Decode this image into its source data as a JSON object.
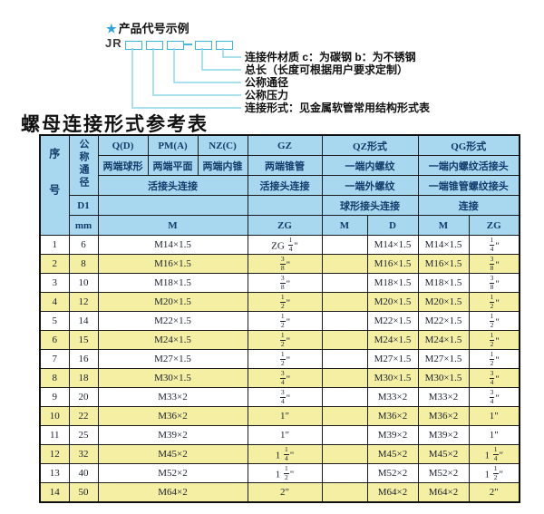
{
  "diagram": {
    "star": "★",
    "title": "产品代号示例",
    "prefix": "JR",
    "labels": [
      "连接件材质  c：为碳钢  b：为不锈钢",
      "总长（长度可根据用户要求定制）",
      "公称通径",
      "公称压力",
      "连接形式：见金属软管常用结构形式表"
    ]
  },
  "table": {
    "title": "螺母连接形式参考表",
    "header": {
      "seq": "序号",
      "dn": "公称通径",
      "d1": "D1",
      "mm": "mm",
      "col_q": "Q(D)",
      "col_pm": "PM(A)",
      "col_nz": "NZ(C)",
      "col_gz": "GZ",
      "col_qz": "QZ形式",
      "col_qg": "QG形式",
      "sub_q": "两端球形",
      "sub_pm": "两端平面",
      "sub_nz": "两端内锥",
      "sub_gz": "两端锥管",
      "sub_qz": "一端内螺纹",
      "sub_qg": "一端内螺纹活接头",
      "row3_qpmnz": "活接头连接",
      "row3_gz": "活接头连接",
      "row3_qz": "一端外螺纹",
      "row3_qg": "一端锥管螺纹接头",
      "row4_qz": "球形接头连接",
      "row4_qg": "连接",
      "m_label": "M",
      "zg_label": "ZG",
      "qz_m": "M",
      "qz_d": "D",
      "qg_m": "M",
      "qg_zg": "ZG"
    },
    "rows": [
      {
        "seq": "1",
        "mm": "6",
        "m": "M14×1.5",
        "gz": "ZG {1/4}\"",
        "qz_m": "",
        "qz_d": "M14×1.5",
        "qg_m": "M14×1.5",
        "qg_zg": "{1/4}\""
      },
      {
        "seq": "2",
        "mm": "8",
        "m": "M16×1.5",
        "gz": "{3/8}\"",
        "qz_m": "",
        "qz_d": "M16×1.5",
        "qg_m": "M16×1.5",
        "qg_zg": "{3/8}\""
      },
      {
        "seq": "3",
        "mm": "10",
        "m": "M18×1.5",
        "gz": "{3/8}\"",
        "qz_m": "",
        "qz_d": "M18×1.5",
        "qg_m": "M18×1.5",
        "qg_zg": "{3/8}\""
      },
      {
        "seq": "4",
        "mm": "12",
        "m": "M20×1.5",
        "gz": "{1/2}\"",
        "qz_m": "",
        "qz_d": "M20×1.5",
        "qg_m": "M20×1.5",
        "qg_zg": "{1/2}\""
      },
      {
        "seq": "5",
        "mm": "14",
        "m": "M22×1.5",
        "gz": "{1/2}\"",
        "qz_m": "",
        "qz_d": "M22×1.5",
        "qg_m": "M22×1.5",
        "qg_zg": "{1/2}\""
      },
      {
        "seq": "6",
        "mm": "15",
        "m": "M24×1.5",
        "gz": "{1/2}\"",
        "qz_m": "",
        "qz_d": "M24×1.5",
        "qg_m": "M24×1.5",
        "qg_zg": "{1/2}\""
      },
      {
        "seq": "7",
        "mm": "16",
        "m": "M27×1.5",
        "gz": "{1/2}\"",
        "qz_m": "",
        "qz_d": "M27×1.5",
        "qg_m": "M27×1.5",
        "qg_zg": "{1/2}\""
      },
      {
        "seq": "8",
        "mm": "18",
        "m": "M30×1.5",
        "gz": "{3/4}\"",
        "qz_m": "",
        "qz_d": "M30×1.5",
        "qg_m": "M30×1.5",
        "qg_zg": "{3/4}\""
      },
      {
        "seq": "9",
        "mm": "20",
        "m": "M33×2",
        "gz": "{3/4}\"",
        "qz_m": "",
        "qz_d": "M33×2",
        "qg_m": "M33×2",
        "qg_zg": "{3/4}\""
      },
      {
        "seq": "10",
        "mm": "22",
        "m": "M36×2",
        "gz": "1\"",
        "qz_m": "",
        "qz_d": "M36×2",
        "qg_m": "M36×2",
        "qg_zg": "1\""
      },
      {
        "seq": "11",
        "mm": "25",
        "m": "M39×2",
        "gz": "1\"",
        "qz_m": "",
        "qz_d": "M39×2",
        "qg_m": "M39×2",
        "qg_zg": "1\""
      },
      {
        "seq": "12",
        "mm": "32",
        "m": "M45×2",
        "gz": "1 {1/4}\"",
        "qz_m": "",
        "qz_d": "M45×2",
        "qg_m": "M45×2",
        "qg_zg": "1 {1/4}\""
      },
      {
        "seq": "13",
        "mm": "40",
        "m": "M52×2",
        "gz": "1 {1/2}\"",
        "qz_m": "",
        "qz_d": "M52×2",
        "qg_m": "M52×2",
        "qg_zg": "1 {1/2}\""
      },
      {
        "seq": "14",
        "mm": "50",
        "m": "M64×2",
        "gz": "2\"",
        "qz_m": "",
        "qz_d": "M64×2",
        "qg_m": "M64×2",
        "qg_zg": "2\""
      }
    ]
  },
  "colors": {
    "header_fill": "#a8d8ef",
    "alt_row_fill": "#f4efa3",
    "header_text": "#123c6b",
    "diagram_line": "#8ed7ea",
    "box_border": "#3ab5dc",
    "star": "#2aa3de",
    "border": "#1c1c1c"
  }
}
